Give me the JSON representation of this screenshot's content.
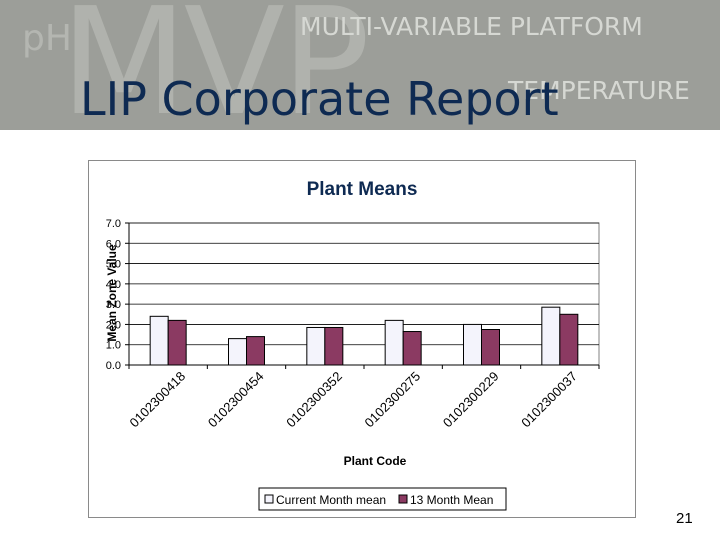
{
  "slide": {
    "title": "LIP Corporate Report",
    "page_number": "21",
    "logo": {
      "ph": "pH",
      "mvp": "MVP",
      "line1": "MULTI-VARIABLE PLATFORM",
      "line2": "TEMPERATURE"
    }
  },
  "colors": {
    "banner": "#9c9e99",
    "title": "#0e2a52",
    "series_current": "#f4f4fc",
    "series_13month": "#8b3a62"
  },
  "chart_data": {
    "type": "bar",
    "title": "Plant Means",
    "xlabel": "Plant Code",
    "ylabel": "Mean Zone Value",
    "ylim": [
      0,
      7
    ],
    "yticks": [
      "0.0",
      "1.0",
      "2.0",
      "3.0",
      "4.0",
      "5.0",
      "6.0",
      "7.0"
    ],
    "categories": [
      "0102300418",
      "0102300454",
      "0102300352",
      "0102300275",
      "0102300229",
      "0102300037"
    ],
    "series": [
      {
        "name": "Current Month mean",
        "values": [
          2.4,
          1.3,
          1.85,
          2.2,
          2.0,
          2.85
        ]
      },
      {
        "name": "13 Month Mean",
        "values": [
          2.2,
          1.4,
          1.85,
          1.65,
          1.75,
          2.5
        ]
      }
    ],
    "legend_position": "bottom",
    "grid": true
  }
}
